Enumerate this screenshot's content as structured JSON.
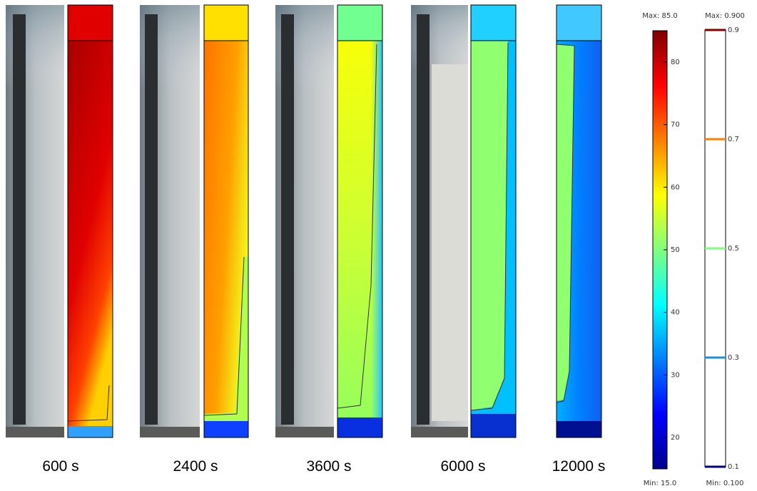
{
  "panels": [
    {
      "label": "600 s"
    },
    {
      "label": "2400 s"
    },
    {
      "label": "3600 s"
    },
    {
      "label": "6000 s"
    },
    {
      "label": "12000 s"
    }
  ],
  "colorbar_temperature": {
    "max_label": "Max: 85.0",
    "min_label": "Min: 15.0",
    "range": [
      15,
      85
    ],
    "ticks": [
      20,
      30,
      40,
      50,
      60,
      70,
      80
    ]
  },
  "colorbar_fraction": {
    "max_label": "Max: 0.900",
    "min_label": "Min: 0.100",
    "range": [
      0.1,
      0.9
    ],
    "ticks": [
      0.1,
      0.3,
      0.5,
      0.7,
      0.9
    ],
    "tick_colors": [
      "#000080",
      "#1e8fe0",
      "#80ff80",
      "#ff8000",
      "#800000"
    ]
  }
}
